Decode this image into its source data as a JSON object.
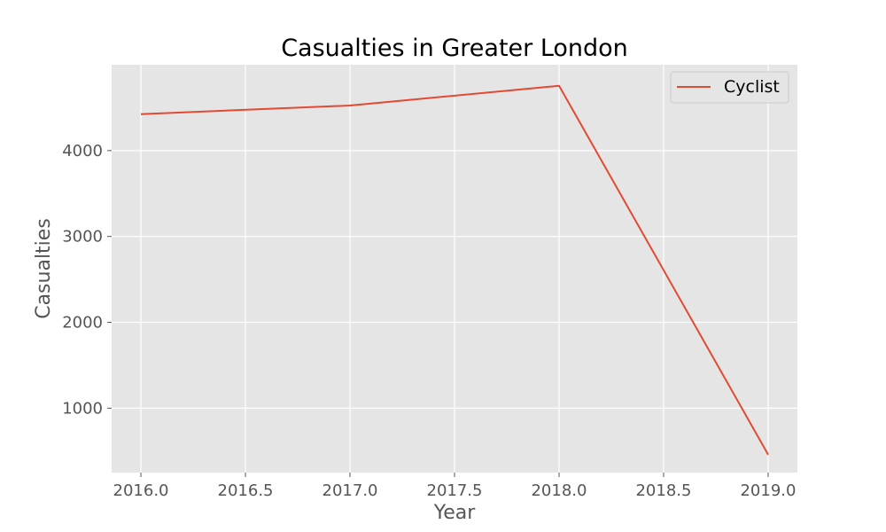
{
  "chart_data": {
    "type": "line",
    "title": "Casualties in Greater London",
    "xlabel": "Year",
    "ylabel": "Casualties",
    "xlim": [
      2015.86,
      2019.14
    ],
    "ylim": [
      250,
      5000
    ],
    "x_ticks": [
      2016.0,
      2016.5,
      2017.0,
      2017.5,
      2018.0,
      2018.5,
      2019.0
    ],
    "x_tick_labels": [
      "2016.0",
      "2016.5",
      "2017.0",
      "2017.5",
      "2018.0",
      "2018.5",
      "2019.0"
    ],
    "y_ticks": [
      1000,
      2000,
      3000,
      4000
    ],
    "y_tick_labels": [
      "1000",
      "2000",
      "3000",
      "4000"
    ],
    "grid": true,
    "legend_position": "upper-right",
    "series": [
      {
        "name": "Cyclist",
        "color": "#E24A33",
        "x": [
          2016,
          2017,
          2018,
          2019
        ],
        "y": [
          4425,
          4525,
          4755,
          460
        ]
      }
    ]
  }
}
